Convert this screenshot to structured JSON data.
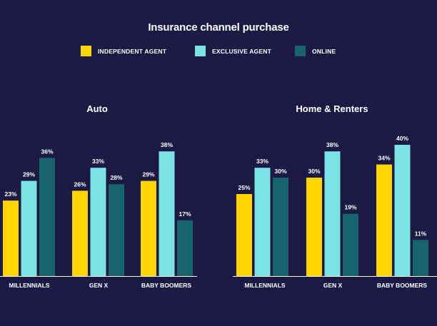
{
  "title": "Insurance channel purchase",
  "colors": {
    "background": "#1c1a45",
    "Independent Agent": "#ffd400",
    "Exclusive Agent": "#7ae3e6",
    "Online": "#17636e",
    "axis": "#ffffff",
    "text": "#ffffff"
  },
  "legend": [
    {
      "label": "INDEPENDENT AGENT",
      "color": "#ffd400"
    },
    {
      "label": "EXCLUSIVE AGENT",
      "color": "#7ae3e6"
    },
    {
      "label": "ONLINE",
      "color": "#17636e"
    }
  ],
  "chart_data": [
    {
      "type": "bar",
      "title": "Auto",
      "categories": [
        "MILLENNIALS",
        "GEN X",
        "BABY BOOMERS"
      ],
      "series": [
        {
          "name": "INDEPENDENT AGENT",
          "values": [
            23,
            26,
            29
          ]
        },
        {
          "name": "EXCLUSIVE AGENT",
          "values": [
            29,
            33,
            38
          ]
        },
        {
          "name": "ONLINE",
          "values": [
            36,
            28,
            17
          ]
        }
      ],
      "value_suffix": "%",
      "legend_position": "top"
    },
    {
      "type": "bar",
      "title": "Home & Renters",
      "categories": [
        "MILLENNIALS",
        "GEN X",
        "BABY BOOMERS"
      ],
      "series": [
        {
          "name": "INDEPENDENT AGENT",
          "values": [
            25,
            30,
            34
          ]
        },
        {
          "name": "EXCLUSIVE AGENT",
          "values": [
            33,
            38,
            40
          ]
        },
        {
          "name": "ONLINE",
          "values": [
            30,
            19,
            11
          ]
        }
      ],
      "value_suffix": "%",
      "legend_position": "top"
    }
  ]
}
